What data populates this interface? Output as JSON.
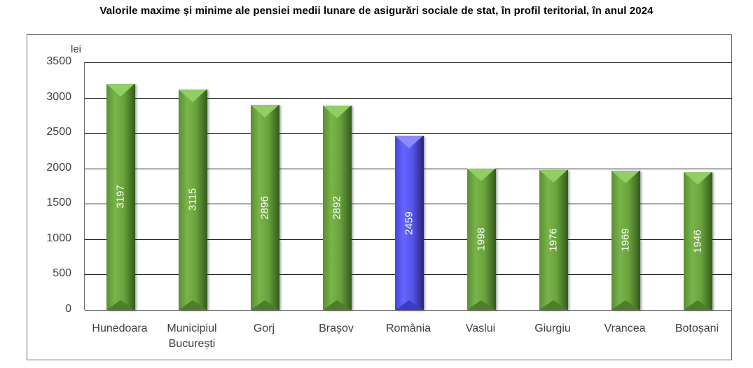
{
  "chart_data": {
    "type": "bar",
    "title": "Valorile maxime și minime ale pensiei medii lunare de asigurări sociale de stat, în profil teritorial, în anul 2024",
    "xlabel": "",
    "ylabel": "lei",
    "ylim": [
      0,
      3500
    ],
    "yticks": [
      0,
      500,
      1000,
      1500,
      2000,
      2500,
      3000,
      3500
    ],
    "grid": true,
    "legend": null,
    "categories": [
      "Hunedoara",
      "Municipiul București",
      "Gorj",
      "Brașov",
      "România",
      "Vaslui",
      "Giurgiu",
      "Vrancea",
      "Botoșani"
    ],
    "values": [
      3197,
      3115,
      2896,
      2892,
      2459,
      1998,
      1976,
      1969,
      1946
    ],
    "bar_colors": [
      "#6aa33d",
      "#6aa33d",
      "#6aa33d",
      "#6aa33d",
      "#5656ee",
      "#6aa33d",
      "#6aa33d",
      "#6aa33d",
      "#6aa33d"
    ],
    "data_labels": [
      "3197",
      "3115",
      "2896",
      "2892",
      "2459",
      "1998",
      "1976",
      "1969",
      "1946"
    ],
    "label_lines": [
      [
        "Hunedoara"
      ],
      [
        "Municipiul",
        "București"
      ],
      [
        "Gorj"
      ],
      [
        "Brașov"
      ],
      [
        "România"
      ],
      [
        "Vaslui"
      ],
      [
        "Giurgiu"
      ],
      [
        "Vrancea"
      ],
      [
        "Botoșani"
      ]
    ]
  },
  "colors": {
    "highlight": "#5656ee",
    "default": "#6aa33d"
  }
}
